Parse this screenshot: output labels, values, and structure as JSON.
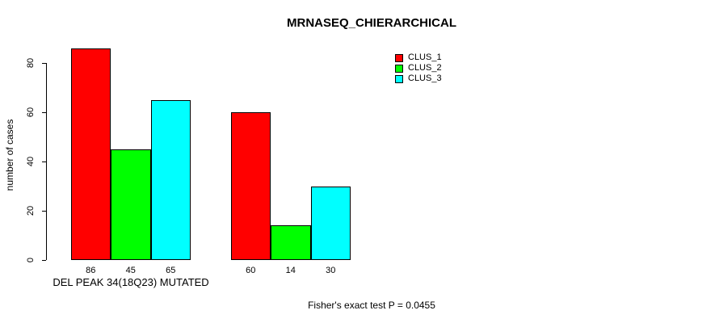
{
  "chart_data": {
    "type": "bar",
    "title": "MRNASEQ_CHIERARCHICAL",
    "ylabel": "number of cases",
    "xlabel": "",
    "categories": [
      "DEL PEAK 34(18Q23) MUTATED",
      ""
    ],
    "series": [
      {
        "name": "CLUS_1",
        "color": "#FF0000",
        "values": [
          86,
          60
        ]
      },
      {
        "name": "CLUS_2",
        "color": "#00FF00",
        "values": [
          45,
          14
        ]
      },
      {
        "name": "CLUS_3",
        "color": "#00FFFF",
        "values": [
          65,
          30
        ]
      }
    ],
    "yticks": [
      0,
      20,
      40,
      60,
      80
    ],
    "ylim": [
      0,
      86
    ],
    "grid": false,
    "bar_value_labels_shown": true,
    "legend_position": "top-right",
    "annotation": "Fisher's exact test P = 0.0455"
  }
}
